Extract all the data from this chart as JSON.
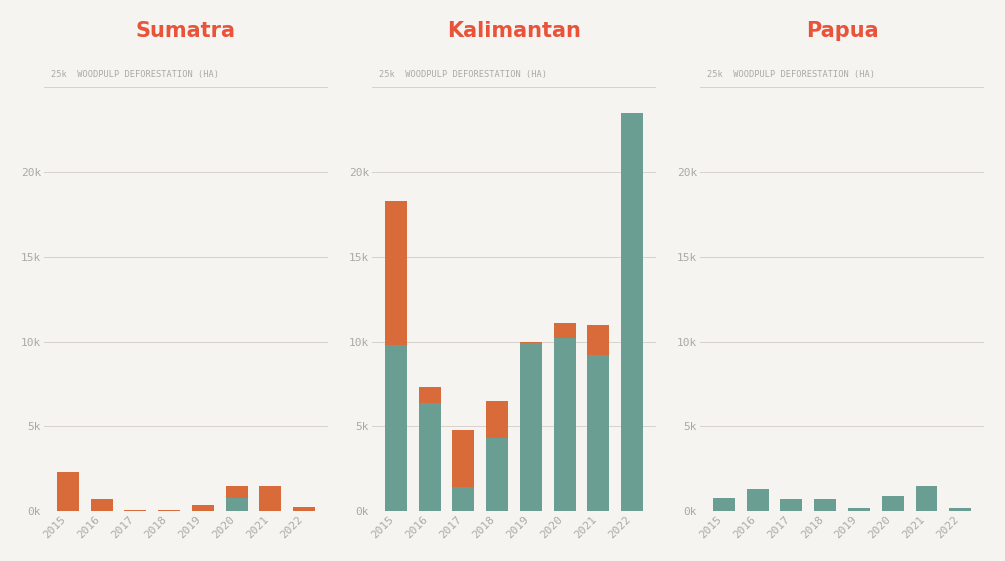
{
  "years": [
    "2015",
    "2016",
    "2017",
    "2018",
    "2019",
    "2020",
    "2021",
    "2022"
  ],
  "regions": [
    "Sumatra",
    "Kalimantan",
    "Papua"
  ],
  "title_color": "#e8533a",
  "ylabel_text": "WOODPULP DEFORESTATION (HA)",
  "background_color": "#f5f4f0",
  "bar_color_teal": "#6b9e93",
  "bar_color_orange": "#d96b3b",
  "ylim": [
    0,
    27000
  ],
  "yticks": [
    0,
    5000,
    10000,
    15000,
    20000
  ],
  "ytick_labels": [
    "0k",
    "5k",
    "10k",
    "15k",
    "20k"
  ],
  "grid_color": "#d0cdc8",
  "axis_text_color": "#aaa9a5",
  "sumatra_teal": [
    0,
    0,
    0,
    0,
    0,
    800,
    0,
    0
  ],
  "sumatra_orange": [
    2300,
    700,
    100,
    50,
    350,
    700,
    1500,
    250
  ],
  "kalimantan_teal": [
    9800,
    6400,
    1400,
    4300,
    9900,
    10200,
    9200,
    23500
  ],
  "kalimantan_orange": [
    8500,
    900,
    3400,
    2200,
    100,
    900,
    1800,
    0
  ],
  "papua_teal": [
    800,
    1300,
    700,
    700,
    200,
    900,
    1500,
    200
  ],
  "papua_orange": [
    0,
    0,
    0,
    0,
    0,
    0,
    0,
    0
  ]
}
